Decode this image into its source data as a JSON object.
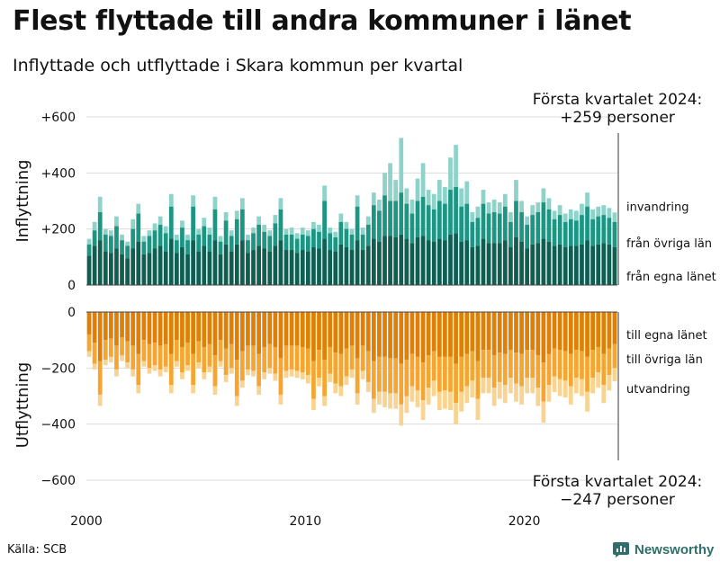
{
  "header": {
    "title": "Flest flyttade till andra kommuner i länet",
    "subtitle": "Inflyttade och utflyttade i Skara kommun per kvartal"
  },
  "footer": {
    "source": "Källa: SCB",
    "brand": "Newsworthy"
  },
  "chart_data": {
    "type": "bar",
    "stacked": true,
    "x_ticks": [
      "2000",
      "2010",
      "2020"
    ],
    "panels": [
      {
        "name": "inflyttning",
        "ylabel": "Inflyttning",
        "ylim": [
          0,
          600
        ],
        "y_ticks": [
          {
            "v": 600,
            "label": "+600"
          },
          {
            "v": 400,
            "label": "+400"
          },
          {
            "v": 200,
            "label": "+200"
          },
          {
            "v": 0,
            "label": "0"
          }
        ],
        "series": [
          {
            "name": "från egna länet",
            "color": "#0e5e52"
          },
          {
            "name": "från övriga län",
            "color": "#1a9683"
          },
          {
            "name": "invandring",
            "color": "#8ed3c9"
          }
        ],
        "annotation": [
          "Första kvartalet 2024:",
          "+259 personer"
        ]
      },
      {
        "name": "utflyttning",
        "ylabel": "Utflyttning",
        "ylim": [
          -600,
          0
        ],
        "y_ticks": [
          {
            "v": 0,
            "label": "0"
          },
          {
            "v": -200,
            "label": "−200"
          },
          {
            "v": -400,
            "label": "−400"
          },
          {
            "v": -600,
            "label": "−600"
          }
        ],
        "series": [
          {
            "name": "till egna länet",
            "color": "#e07f05"
          },
          {
            "name": "till övriga län",
            "color": "#f7a531"
          },
          {
            "name": "utvandring",
            "color": "#f9d391"
          }
        ],
        "annotation": [
          "Första kvartalet 2024:",
          "−247 personer"
        ]
      }
    ],
    "periods": [
      "2000 Q1",
      "2000 Q2",
      "2000 Q3",
      "2000 Q4",
      "2001 Q1",
      "2001 Q2",
      "2001 Q3",
      "2001 Q4",
      "2002 Q1",
      "2002 Q2",
      "2002 Q3",
      "2002 Q4",
      "2003 Q1",
      "2003 Q2",
      "2003 Q3",
      "2003 Q4",
      "2004 Q1",
      "2004 Q2",
      "2004 Q3",
      "2004 Q4",
      "2005 Q1",
      "2005 Q2",
      "2005 Q3",
      "2005 Q4",
      "2006 Q1",
      "2006 Q2",
      "2006 Q3",
      "2006 Q4",
      "2007 Q1",
      "2007 Q2",
      "2007 Q3",
      "2007 Q4",
      "2008 Q1",
      "2008 Q2",
      "2008 Q3",
      "2008 Q4",
      "2009 Q1",
      "2009 Q2",
      "2009 Q3",
      "2009 Q4",
      "2010 Q1",
      "2010 Q2",
      "2010 Q3",
      "2010 Q4",
      "2011 Q1",
      "2011 Q2",
      "2011 Q3",
      "2011 Q4",
      "2012 Q1",
      "2012 Q2",
      "2012 Q3",
      "2012 Q4",
      "2013 Q1",
      "2013 Q2",
      "2013 Q3",
      "2013 Q4",
      "2014 Q1",
      "2014 Q2",
      "2014 Q3",
      "2014 Q4",
      "2015 Q1",
      "2015 Q2",
      "2015 Q3",
      "2015 Q4",
      "2016 Q1",
      "2016 Q2",
      "2016 Q3",
      "2016 Q4",
      "2017 Q1",
      "2017 Q2",
      "2017 Q3",
      "2017 Q4",
      "2018 Q1",
      "2018 Q2",
      "2018 Q3",
      "2018 Q4",
      "2019 Q1",
      "2019 Q2",
      "2019 Q3",
      "2019 Q4",
      "2020 Q1",
      "2020 Q2",
      "2020 Q3",
      "2020 Q4",
      "2021 Q1",
      "2021 Q2",
      "2021 Q3",
      "2021 Q4",
      "2022 Q1",
      "2022 Q2",
      "2022 Q3",
      "2022 Q4",
      "2023 Q1",
      "2023 Q2",
      "2023 Q3",
      "2023 Q4",
      "2024 Q1"
    ],
    "inflyttning": {
      "total": [
        165,
        225,
        315,
        200,
        195,
        245,
        180,
        155,
        235,
        290,
        175,
        195,
        220,
        245,
        210,
        325,
        180,
        230,
        180,
        320,
        200,
        240,
        205,
        315,
        175,
        260,
        195,
        265,
        310,
        180,
        205,
        245,
        215,
        195,
        250,
        310,
        200,
        205,
        185,
        205,
        195,
        225,
        215,
        355,
        205,
        190,
        255,
        225,
        200,
        320,
        205,
        245,
        330,
        305,
        400,
        435,
        375,
        525,
        345,
        305,
        380,
        435,
        340,
        325,
        375,
        350,
        455,
        500,
        345,
        370,
        260,
        280,
        340,
        295,
        305,
        295,
        325,
        260,
        375,
        300,
        245,
        285,
        295,
        345,
        310,
        265,
        285,
        255,
        270,
        265,
        290,
        330,
        270,
        280,
        285,
        275,
        259
      ],
      "from_ovriga": [
        145,
        195,
        260,
        180,
        175,
        210,
        160,
        140,
        200,
        255,
        155,
        175,
        195,
        215,
        185,
        280,
        160,
        205,
        160,
        280,
        180,
        210,
        180,
        270,
        155,
        230,
        175,
        235,
        270,
        160,
        185,
        215,
        190,
        175,
        220,
        270,
        180,
        180,
        165,
        180,
        175,
        200,
        190,
        300,
        185,
        170,
        225,
        200,
        180,
        280,
        180,
        215,
        285,
        265,
        320,
        300,
        300,
        330,
        290,
        255,
        300,
        315,
        285,
        270,
        300,
        290,
        340,
        350,
        280,
        290,
        225,
        240,
        290,
        255,
        260,
        255,
        280,
        225,
        300,
        260,
        215,
        250,
        260,
        295,
        270,
        235,
        250,
        225,
        235,
        230,
        250,
        280,
        235,
        245,
        250,
        240,
        225
      ],
      "egna": [
        105,
        140,
        160,
        120,
        115,
        130,
        110,
        95,
        130,
        155,
        110,
        115,
        130,
        140,
        120,
        165,
        115,
        135,
        110,
        160,
        120,
        140,
        120,
        160,
        110,
        145,
        120,
        145,
        160,
        115,
        125,
        140,
        130,
        120,
        140,
        160,
        125,
        125,
        115,
        125,
        120,
        135,
        130,
        165,
        125,
        120,
        145,
        135,
        125,
        160,
        125,
        140,
        165,
        155,
        175,
        175,
        170,
        180,
        165,
        150,
        170,
        175,
        160,
        155,
        165,
        160,
        180,
        185,
        155,
        160,
        135,
        140,
        165,
        150,
        150,
        150,
        160,
        135,
        170,
        155,
        130,
        145,
        150,
        165,
        155,
        140,
        145,
        135,
        140,
        140,
        145,
        160,
        140,
        145,
        150,
        145,
        135
      ]
    },
    "utflyttning": {
      "total": [
        -160,
        -205,
        -335,
        -190,
        -180,
        -230,
        -175,
        -200,
        -230,
        -290,
        -195,
        -220,
        -210,
        -230,
        -215,
        -290,
        -195,
        -240,
        -210,
        -290,
        -200,
        -240,
        -215,
        -295,
        -195,
        -250,
        -220,
        -335,
        -270,
        -225,
        -230,
        -295,
        -240,
        -220,
        -245,
        -330,
        -235,
        -230,
        -235,
        -240,
        -255,
        -350,
        -265,
        -335,
        -250,
        -290,
        -300,
        -260,
        -235,
        -330,
        -240,
        -285,
        -360,
        -330,
        -340,
        -345,
        -345,
        -405,
        -360,
        -320,
        -340,
        -385,
        -330,
        -300,
        -350,
        -345,
        -350,
        -400,
        -355,
        -325,
        -305,
        -385,
        -290,
        -290,
        -335,
        -310,
        -325,
        -290,
        -320,
        -330,
        -290,
        -290,
        -335,
        -395,
        -320,
        -285,
        -300,
        -305,
        -330,
        -290,
        -300,
        -355,
        -290,
        -270,
        -325,
        -280,
        -247
      ],
      "till_ovriga": [
        -140,
        -185,
        -295,
        -170,
        -160,
        -205,
        -155,
        -180,
        -205,
        -260,
        -175,
        -200,
        -190,
        -205,
        -195,
        -260,
        -175,
        -215,
        -190,
        -260,
        -180,
        -215,
        -195,
        -265,
        -175,
        -225,
        -200,
        -300,
        -245,
        -205,
        -210,
        -265,
        -215,
        -200,
        -220,
        -295,
        -210,
        -205,
        -210,
        -215,
        -225,
        -310,
        -235,
        -300,
        -220,
        -255,
        -265,
        -230,
        -205,
        -290,
        -210,
        -250,
        -310,
        -285,
        -285,
        -290,
        -290,
        -330,
        -300,
        -265,
        -280,
        -315,
        -270,
        -245,
        -285,
        -280,
        -285,
        -325,
        -285,
        -265,
        -245,
        -310,
        -235,
        -235,
        -270,
        -250,
        -260,
        -235,
        -255,
        -265,
        -235,
        -235,
        -270,
        -320,
        -260,
        -230,
        -240,
        -245,
        -265,
        -235,
        -240,
        -285,
        -235,
        -215,
        -260,
        -225,
        -200
      ],
      "egna": [
        -80,
        -110,
        -175,
        -100,
        -95,
        -120,
        -90,
        -105,
        -120,
        -150,
        -100,
        -115,
        -110,
        -120,
        -115,
        -150,
        -100,
        -125,
        -110,
        -150,
        -105,
        -125,
        -115,
        -155,
        -100,
        -130,
        -115,
        -170,
        -140,
        -120,
        -120,
        -150,
        -125,
        -115,
        -125,
        -165,
        -120,
        -120,
        -120,
        -125,
        -130,
        -175,
        -135,
        -170,
        -125,
        -145,
        -150,
        -130,
        -120,
        -165,
        -120,
        -140,
        -175,
        -160,
        -160,
        -165,
        -165,
        -185,
        -170,
        -150,
        -160,
        -180,
        -155,
        -140,
        -160,
        -160,
        -160,
        -185,
        -160,
        -150,
        -140,
        -175,
        -135,
        -135,
        -155,
        -145,
        -150,
        -135,
        -145,
        -150,
        -135,
        -135,
        -155,
        -180,
        -150,
        -130,
        -135,
        -140,
        -150,
        -135,
        -140,
        -160,
        -135,
        -125,
        -150,
        -130,
        -115
      ]
    }
  }
}
